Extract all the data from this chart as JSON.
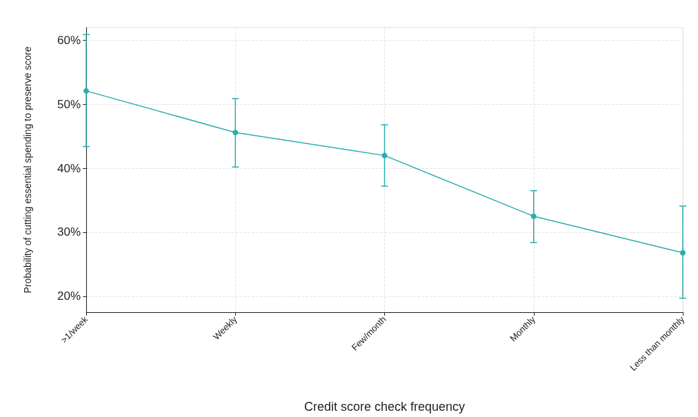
{
  "chart_data": {
    "type": "line",
    "xlabel": "Credit score check frequency",
    "ylabel": "Probability of cutting essential spending to preserve score",
    "categories": [
      ">1/week",
      "Weekly",
      "Few/month",
      "Monthly",
      "Less than monthly"
    ],
    "series": [
      {
        "color": "#2aacb0",
        "values": [
          52.1,
          45.6,
          42.0,
          32.5,
          26.8
        ],
        "errors": [
          [
            43.4,
            60.9
          ],
          [
            40.2,
            50.9
          ],
          [
            37.2,
            46.8
          ],
          [
            28.4,
            36.5
          ],
          [
            19.7,
            34.1
          ]
        ]
      }
    ],
    "ylim": [
      17.5,
      62
    ],
    "yticks": [
      {
        "value": 20,
        "label": "20%"
      },
      {
        "value": 30,
        "label": "30%"
      },
      {
        "value": 40,
        "label": "40%"
      },
      {
        "value": 50,
        "label": "50%"
      },
      {
        "value": 60,
        "label": "60%"
      }
    ],
    "grid": true,
    "marker": "circle"
  }
}
